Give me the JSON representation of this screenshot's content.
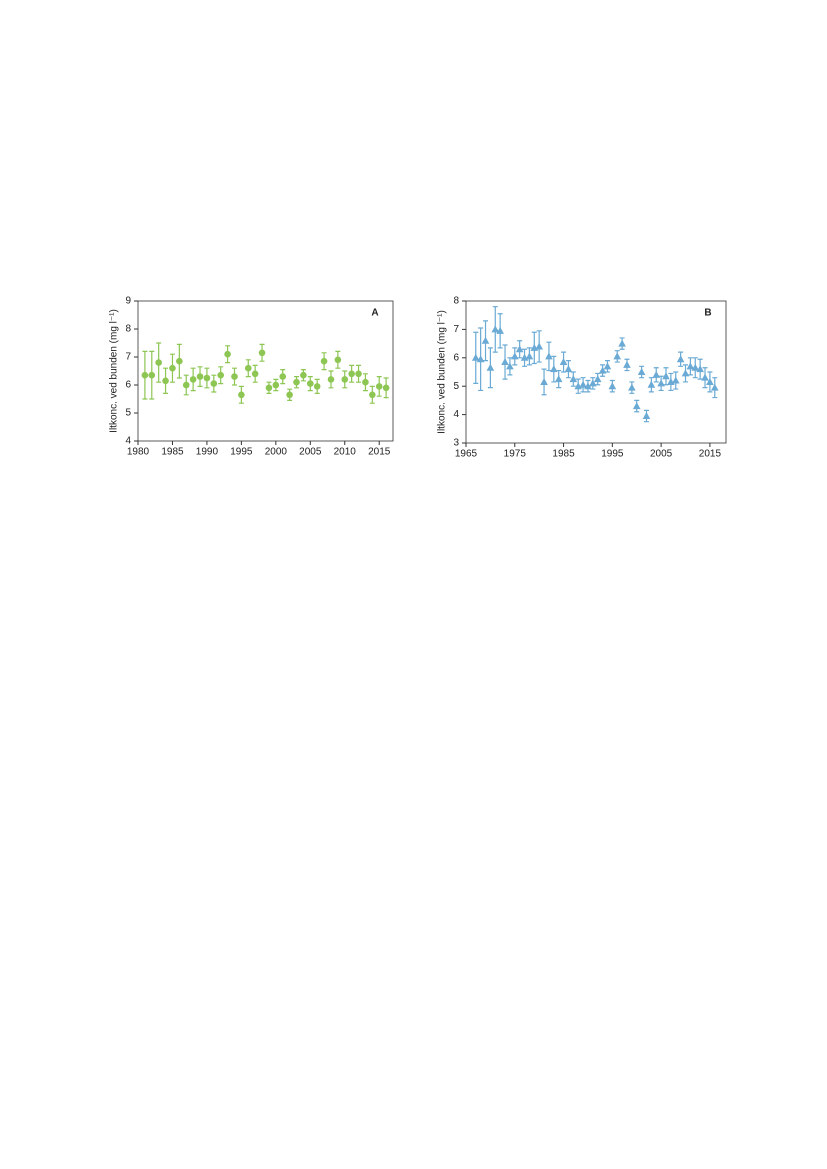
{
  "chart_data": [
    {
      "type": "scatter",
      "label": "A",
      "ylabel": "Iltkonc. ved bunden (mg l⁻¹)",
      "marker": "circle",
      "color": "#8dc653",
      "x": [
        1981,
        1982,
        1983,
        1984,
        1985,
        1986,
        1987,
        1988,
        1989,
        1990,
        1991,
        1992,
        1993,
        1994,
        1995,
        1996,
        1997,
        1998,
        1999,
        2000,
        2001,
        2002,
        2003,
        2004,
        2005,
        2006,
        2007,
        2008,
        2009,
        2010,
        2011,
        2012,
        2013,
        2014,
        2015,
        2016
      ],
      "values": [
        6.35,
        6.35,
        6.8,
        6.15,
        6.6,
        6.85,
        6.0,
        6.2,
        6.3,
        6.25,
        6.05,
        6.35,
        7.1,
        6.3,
        5.65,
        6.6,
        6.4,
        7.15,
        5.9,
        6.0,
        6.3,
        5.65,
        6.1,
        6.35,
        6.05,
        5.95,
        6.85,
        6.2,
        6.9,
        6.2,
        6.4,
        6.4,
        6.1,
        5.65,
        5.95,
        5.9
      ],
      "errors": [
        0.85,
        0.85,
        0.7,
        0.45,
        0.5,
        0.6,
        0.35,
        0.4,
        0.35,
        0.35,
        0.3,
        0.3,
        0.3,
        0.3,
        0.3,
        0.3,
        0.3,
        0.3,
        0.2,
        0.2,
        0.25,
        0.2,
        0.2,
        0.2,
        0.25,
        0.25,
        0.3,
        0.3,
        0.3,
        0.3,
        0.3,
        0.3,
        0.3,
        0.3,
        0.35,
        0.35
      ],
      "xlim": [
        1980,
        2017
      ],
      "ylim": [
        4,
        9
      ],
      "xticks": [
        1980,
        1985,
        1990,
        1995,
        2000,
        2005,
        2010,
        2015
      ],
      "yticks": [
        4,
        5,
        6,
        7,
        8,
        9
      ]
    },
    {
      "type": "scatter",
      "label": "B",
      "ylabel": "Iltkonc. ved bunden (mg l⁻¹)",
      "marker": "triangle",
      "color": "#6aaad4",
      "x": [
        1967,
        1968,
        1969,
        1970,
        1971,
        1972,
        1973,
        1974,
        1975,
        1976,
        1977,
        1978,
        1979,
        1980,
        1981,
        1982,
        1983,
        1984,
        1985,
        1986,
        1987,
        1988,
        1989,
        1990,
        1991,
        1992,
        1993,
        1994,
        1995,
        1996,
        1997,
        1998,
        1999,
        2000,
        2001,
        2002,
        2003,
        2004,
        2005,
        2006,
        2007,
        2008,
        2009,
        2010,
        2011,
        2012,
        2013,
        2014,
        2015,
        2016
      ],
      "values": [
        6.0,
        5.95,
        6.6,
        5.65,
        7.0,
        6.95,
        5.85,
        5.7,
        6.05,
        6.3,
        6.0,
        6.05,
        6.35,
        6.4,
        5.15,
        6.05,
        5.6,
        5.25,
        5.85,
        5.6,
        5.25,
        5.0,
        5.05,
        5.0,
        5.1,
        5.25,
        5.55,
        5.7,
        5.0,
        6.05,
        6.5,
        5.75,
        4.95,
        4.3,
        5.5,
        3.95,
        5.05,
        5.4,
        5.1,
        5.35,
        5.15,
        5.2,
        5.95,
        5.45,
        5.7,
        5.65,
        5.6,
        5.3,
        5.15,
        4.95
      ],
      "errors": [
        0.9,
        1.1,
        0.7,
        0.7,
        0.8,
        0.6,
        0.6,
        0.3,
        0.3,
        0.3,
        0.3,
        0.3,
        0.55,
        0.55,
        0.45,
        0.5,
        0.45,
        0.3,
        0.35,
        0.3,
        0.25,
        0.25,
        0.25,
        0.2,
        0.2,
        0.2,
        0.2,
        0.2,
        0.2,
        0.2,
        0.2,
        0.2,
        0.2,
        0.2,
        0.2,
        0.2,
        0.25,
        0.25,
        0.25,
        0.3,
        0.3,
        0.3,
        0.25,
        0.3,
        0.3,
        0.35,
        0.35,
        0.35,
        0.35,
        0.35
      ],
      "xlim": [
        1965,
        2018.3
      ],
      "ylim": [
        3,
        8
      ],
      "xticks": [
        1965,
        1975,
        1985,
        1995,
        2005,
        2015
      ],
      "yticks": [
        3,
        4,
        5,
        6,
        7,
        8
      ]
    }
  ]
}
